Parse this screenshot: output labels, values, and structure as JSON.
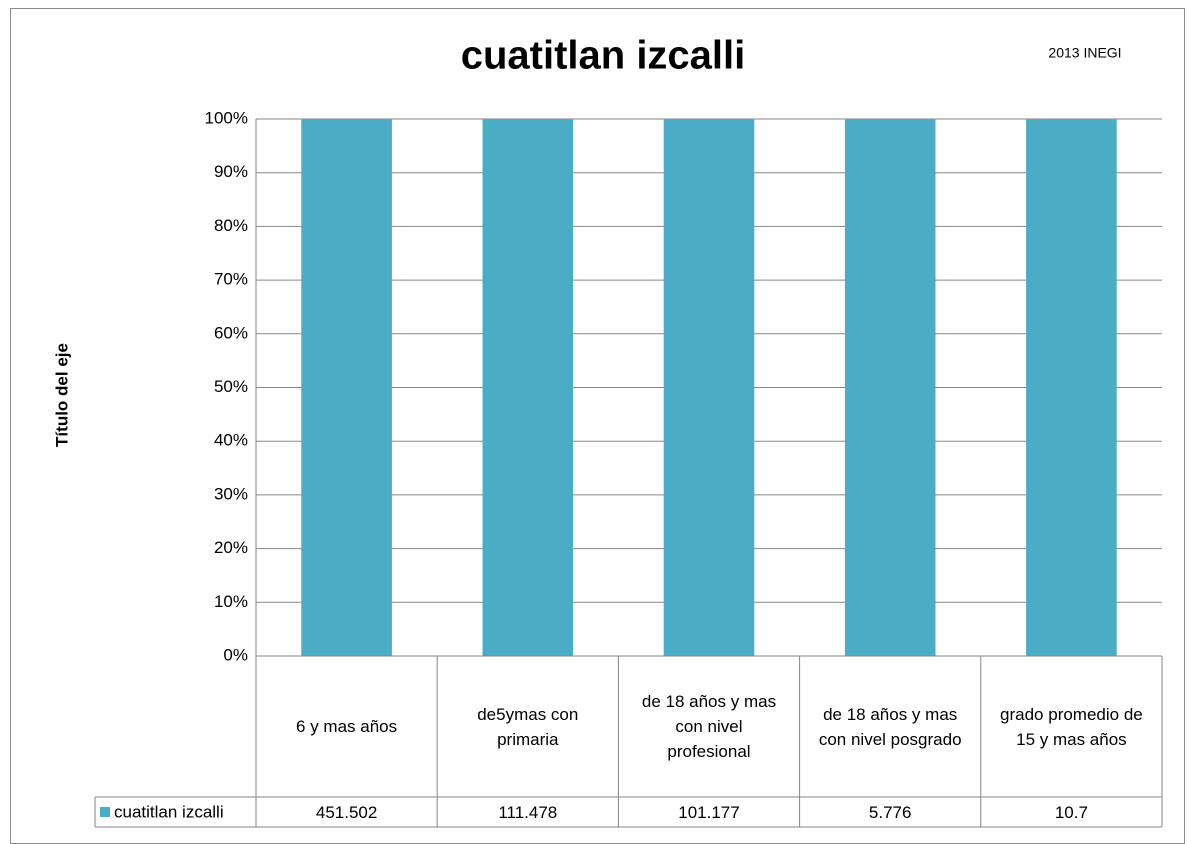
{
  "chart_data": {
    "type": "bar",
    "stacking": "percent",
    "title": "cuatitlan izcalli",
    "subtitle": "2013 INEGI",
    "y_label": "Título del eje",
    "categories": [
      "6 y mas años",
      "de5ymas con primaria",
      "de 18 años y mas con nivel profesional",
      "de 18 años y mas con nivel posgrado",
      "grado promedio de 15 y mas años"
    ],
    "series": [
      {
        "name": "cuatitlan izcalli",
        "color": "#4bacc6",
        "values": [
          451.502,
          111.478,
          101.177,
          5.776,
          10.7
        ]
      }
    ],
    "ylim": [
      0,
      100
    ],
    "yticks": [
      {
        "value": 0,
        "label": "0%"
      },
      {
        "value": 10,
        "label": "10%"
      },
      {
        "value": 20,
        "label": "20%"
      },
      {
        "value": 30,
        "label": "30%"
      },
      {
        "value": 40,
        "label": "40%"
      },
      {
        "value": 50,
        "label": "50%"
      },
      {
        "value": 60,
        "label": "60%"
      },
      {
        "value": 70,
        "label": "70%"
      },
      {
        "value": 80,
        "label": "80%"
      },
      {
        "value": 90,
        "label": "90%"
      },
      {
        "value": 100,
        "label": "100%"
      }
    ],
    "grid": true,
    "data_table": true
  }
}
